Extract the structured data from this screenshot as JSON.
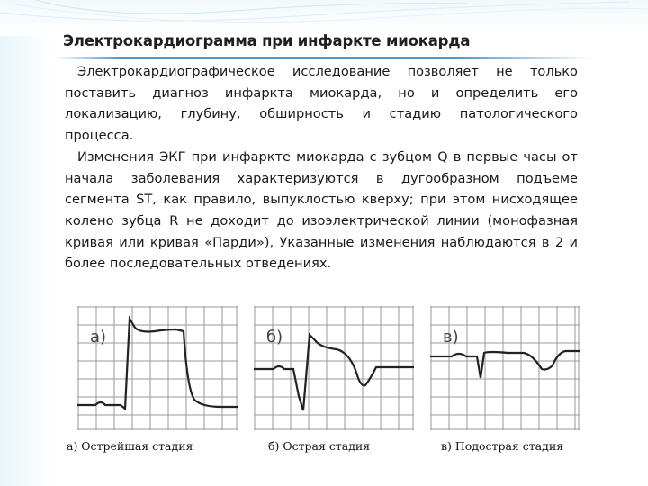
{
  "page": {
    "title": "Электрокардиограмма при инфаркте миокарда",
    "paragraphs": [
      "Электрокардиографическое исследование позволяет не только поставить диагноз инфаркта миокарда, но и определить его локализацию, глубину, обширность и стадию патологического процесса.",
      "Изменения ЭКГ при инфаркте миокарда с зубцом Q в первые часы от начала заболевания характеризуются в дугообразном подъеме сегмента ST, как правило, выпуклостью кверху; при этом нисходящее колено зубца R не доходит до изоэлектрической линии (монофазная кривая или кривая «Парди»), Указанные изменения наблюдаются в 2 и более последовательных отведениях."
    ],
    "figures": [
      {
        "letter": "а)",
        "caption": "а) Острейшая стадия"
      },
      {
        "letter": "б)",
        "caption": "б) Острая стадия"
      },
      {
        "letter": "в)",
        "caption": "в) Подострая стадия"
      }
    ],
    "colors": {
      "accent": "#3a8fc9",
      "grid": "#9a9a9a",
      "trace": "#222222"
    }
  }
}
